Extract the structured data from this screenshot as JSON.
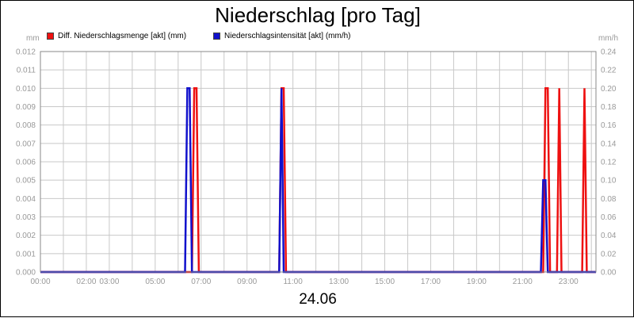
{
  "title": "Niederschlag [pro Tag]",
  "date_label": "24.06",
  "units": {
    "left": "mm",
    "right": "mm/h"
  },
  "legend": [
    {
      "label": "Diff. Niederschlagsmenge [akt] (mm)",
      "color": "#ee1111"
    },
    {
      "label": "Niederschlagsintensität [akt] (mm/h)",
      "color": "#1111cc"
    }
  ],
  "chart_data": {
    "type": "line",
    "title": "Niederschlag [pro Tag]",
    "xlabel": "24.06",
    "ylabel_left": "mm",
    "ylabel_right": "mm/h",
    "x_range_hours": [
      0,
      24.2
    ],
    "ylim_left": [
      0,
      0.012
    ],
    "ylim_right": [
      0,
      0.24
    ],
    "y_ticks_left": [
      "0.000",
      "0.001",
      "0.002",
      "0.003",
      "0.004",
      "0.005",
      "0.006",
      "0.007",
      "0.008",
      "0.009",
      "0.010",
      "0.011",
      "0.012"
    ],
    "y_ticks_right": [
      "0.00",
      "0.02",
      "0.04",
      "0.06",
      "0.08",
      "0.10",
      "0.12",
      "0.14",
      "0.16",
      "0.18",
      "0.20",
      "0.22",
      "0.24"
    ],
    "x_ticks": [
      {
        "h": 0,
        "label": "00:00"
      },
      {
        "h": 2,
        "label": "02:00"
      },
      {
        "h": 3,
        "label": "03:00"
      },
      {
        "h": 5,
        "label": "05:00"
      },
      {
        "h": 7,
        "label": "07:00"
      },
      {
        "h": 9,
        "label": "09:00"
      },
      {
        "h": 11,
        "label": "11:00"
      },
      {
        "h": 13,
        "label": "13:00"
      },
      {
        "h": 15,
        "label": "15:00"
      },
      {
        "h": 17,
        "label": "17:00"
      },
      {
        "h": 19,
        "label": "19:00"
      },
      {
        "h": 21,
        "label": "21:00"
      },
      {
        "h": 23,
        "label": "23:00"
      }
    ],
    "grid": true,
    "series": [
      {
        "name": "Diff. Niederschlagsmenge [akt] (mm)",
        "axis": "left",
        "color": "#ee1111",
        "x": [
          0,
          6.6,
          6.7,
          6.8,
          6.9,
          10.4,
          10.5,
          10.6,
          10.7,
          21.9,
          22.0,
          22.1,
          22.2,
          22.5,
          22.6,
          22.7,
          23.6,
          23.7,
          23.8,
          24.2
        ],
        "y": [
          0,
          0,
          0.01,
          0.01,
          0,
          0,
          0.01,
          0.01,
          0,
          0,
          0.01,
          0.01,
          0,
          0,
          0.01,
          0,
          0,
          0.01,
          0,
          0
        ]
      },
      {
        "name": "Niederschlagsintensität [akt] (mm/h)",
        "axis": "right",
        "color": "#1111cc",
        "x": [
          0,
          6.3,
          6.4,
          6.5,
          6.6,
          10.4,
          10.5,
          10.6,
          21.8,
          21.9,
          22.0,
          22.1,
          24.2
        ],
        "y": [
          0,
          0,
          0.2,
          0.2,
          0,
          0,
          0.2,
          0,
          0,
          0.1,
          0.1,
          0,
          0
        ]
      }
    ]
  }
}
